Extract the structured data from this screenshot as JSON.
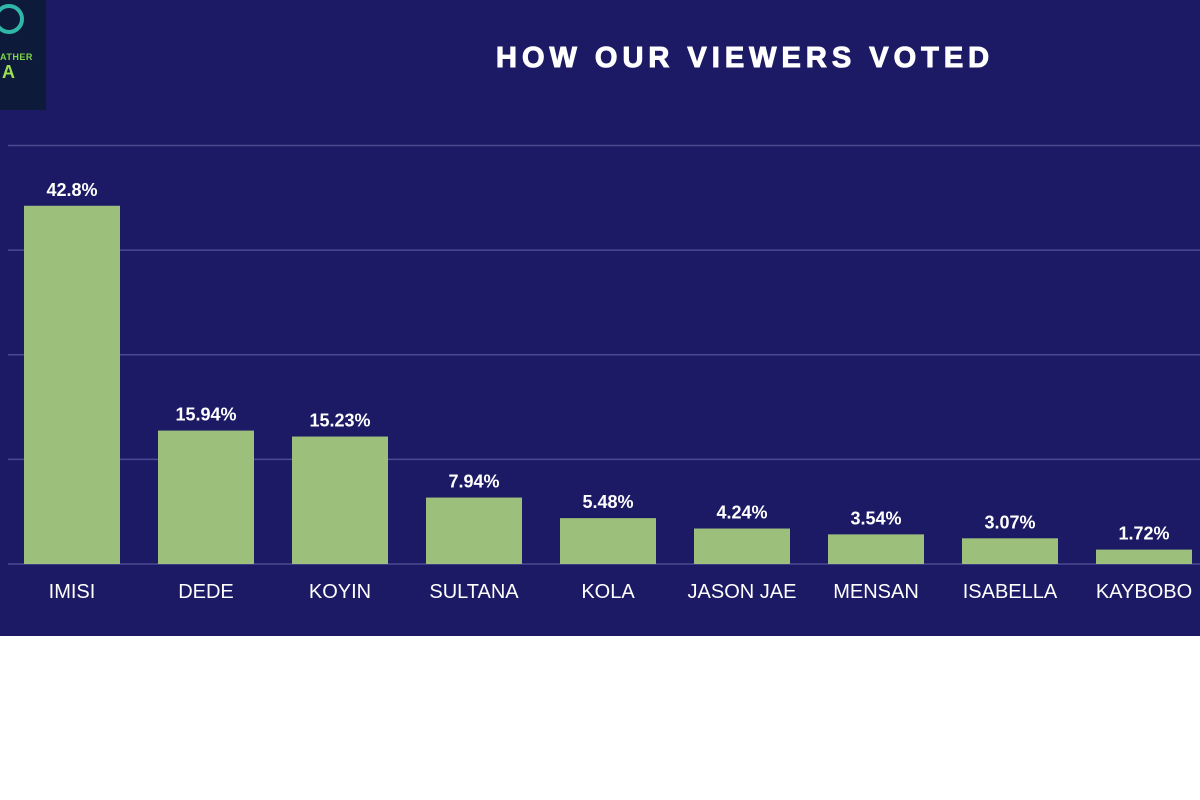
{
  "header": {
    "logo_line1": "ATHER",
    "logo_line2": "A",
    "title": "HOW OUR VIEWERS VOTED"
  },
  "colors": {
    "background": "#1c1a64",
    "bar": "#9cbf7c",
    "gridline": "#4a4a90",
    "text": "#ffffff"
  },
  "chart_data": {
    "type": "bar",
    "title": "HOW OUR VIEWERS VOTED",
    "xlabel": "",
    "ylabel": "",
    "categories": [
      "IMISI",
      "DEDE",
      "KOYIN",
      "SULTANA",
      "KOLA",
      "JASON JAE",
      "MENSAN",
      "ISABELLA",
      "KAYBOBO"
    ],
    "values": [
      42.8,
      15.94,
      15.23,
      7.94,
      5.48,
      4.24,
      3.54,
      3.07,
      1.72
    ],
    "data_labels": [
      "42.8%",
      "15.94%",
      "15.23%",
      "7.94%",
      "5.48%",
      "4.24%",
      "3.54%",
      "3.07%",
      "1.72%"
    ],
    "ylim": [
      0,
      50
    ],
    "grid": true
  }
}
